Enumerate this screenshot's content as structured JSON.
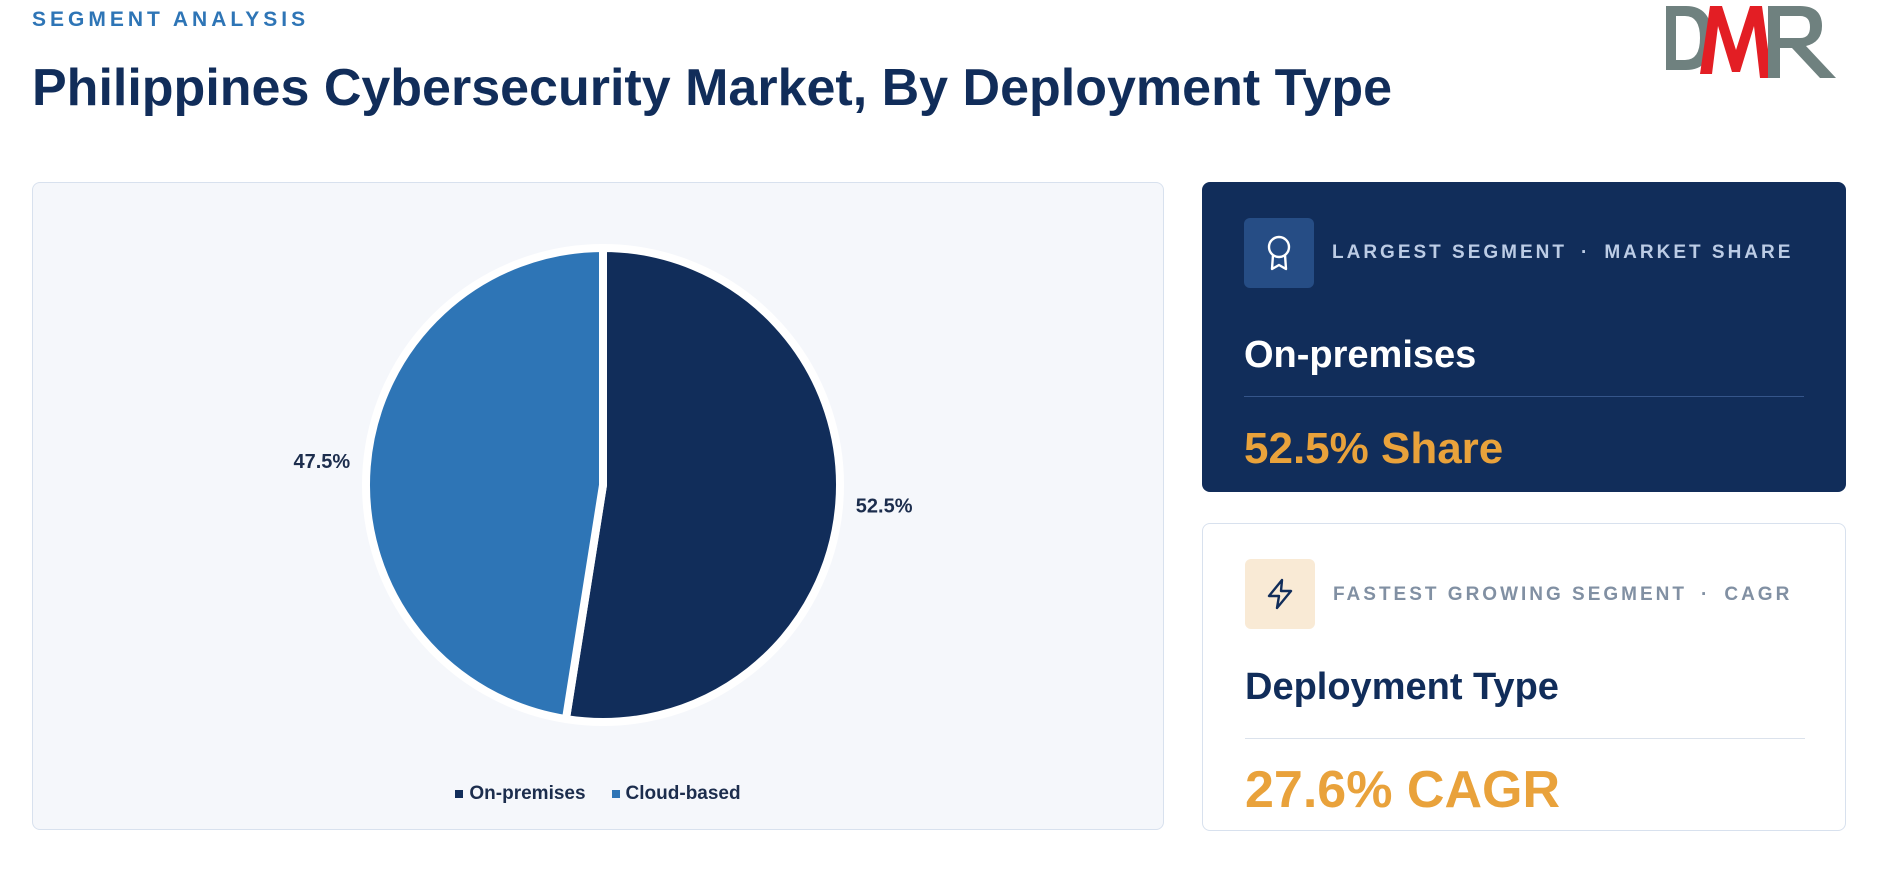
{
  "header": {
    "eyebrow": "SEGMENT ANALYSIS",
    "title": "Philippines Cybersecurity Market, By Deployment Type",
    "logo_text": "DMR"
  },
  "chart_data": {
    "type": "pie",
    "title": "",
    "categories": [
      "On-premises",
      "Cloud-based"
    ],
    "values": [
      52.5,
      47.5
    ],
    "labels": [
      "52.5%",
      "47.5%"
    ],
    "colors": [
      "#112d5a",
      "#2e75b6"
    ],
    "legend_position": "bottom-center",
    "start_angle": "top, clockwise"
  },
  "cards": {
    "largest": {
      "icon": "award-icon",
      "label_primary": "LARGEST SEGMENT",
      "separator": "·",
      "label_secondary": "MARKET SHARE",
      "name": "On-premises",
      "value": "52.5% Share"
    },
    "fastest": {
      "icon": "lightning-icon",
      "label_primary": "FASTEST GROWING SEGMENT",
      "separator": "·",
      "label_secondary": "CAGR",
      "name": "Deployment Type",
      "value": "27.6% CAGR"
    }
  },
  "colors": {
    "navy": "#112d5a",
    "blue": "#2e75b6",
    "accent": "#e9a23b",
    "logo_gray": "#6f817f",
    "logo_red": "#e31e24"
  }
}
